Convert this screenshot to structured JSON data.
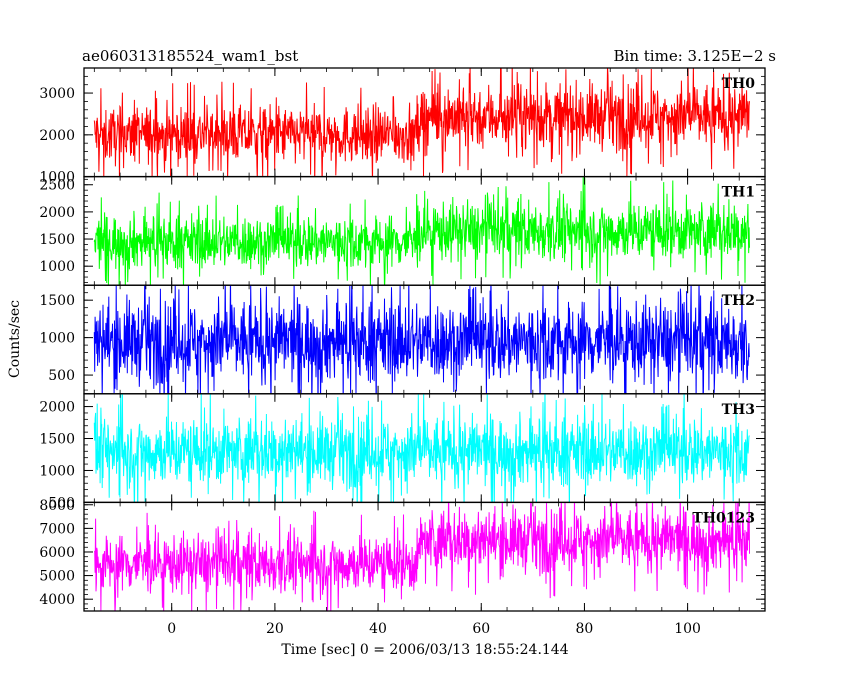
{
  "chart_data": {
    "type": "line",
    "title": "ae060313185524_wam1_bst",
    "bin_time_label": "Bin time: 3.125E−2 s",
    "xlabel": "Time [sec] 0 = 2006/03/13 18:55:24.144",
    "ylabel": "Counts/sec",
    "xlim": [
      -17,
      115
    ],
    "x_data_range": [
      -15,
      112
    ],
    "xticks": [
      0,
      20,
      40,
      60,
      80,
      100
    ],
    "xtick_labels": [
      "0",
      "20",
      "40",
      "60",
      "80",
      "100"
    ],
    "panels": [
      {
        "name": "TH0",
        "color": "#ff0000",
        "ylim": [
          1000,
          3600
        ],
        "yticks": [
          1000,
          2000,
          3000
        ],
        "ytick_labels": [
          "1000",
          "2000",
          "3000"
        ],
        "segments": [
          {
            "x_start": -15,
            "x_end": 48,
            "low": 1300,
            "mean": 2000,
            "high": 2800
          },
          {
            "x_start": 48,
            "x_end": 112,
            "low": 1600,
            "mean": 2450,
            "high": 3300
          }
        ]
      },
      {
        "name": "TH1",
        "color": "#00ff00",
        "ylim": [
          650,
          2650
        ],
        "yticks": [
          1000,
          1500,
          2000,
          2500
        ],
        "ytick_labels": [
          "1000",
          "1500",
          "2000",
          "2500"
        ],
        "segments": [
          {
            "x_start": -15,
            "x_end": 48,
            "low": 950,
            "mean": 1450,
            "high": 2050
          },
          {
            "x_start": 48,
            "x_end": 112,
            "low": 1100,
            "mean": 1650,
            "high": 2300
          }
        ]
      },
      {
        "name": "TH2",
        "color": "#0000ff",
        "ylim": [
          250,
          1700
        ],
        "yticks": [
          500,
          1000,
          1500
        ],
        "ytick_labels": [
          "500",
          "1000",
          "1500"
        ],
        "segments": [
          {
            "x_start": -15,
            "x_end": 112,
            "low": 350,
            "mean": 950,
            "high": 1550
          }
        ]
      },
      {
        "name": "TH3",
        "color": "#00ffff",
        "ylim": [
          500,
          2200
        ],
        "yticks": [
          500,
          1000,
          1500,
          2000
        ],
        "ytick_labels": [
          "500",
          "1000",
          "1500",
          "2000"
        ],
        "segments": [
          {
            "x_start": -15,
            "x_end": 112,
            "low": 750,
            "mean": 1300,
            "high": 1950
          }
        ]
      },
      {
        "name": "TH0123",
        "color": "#ff00ff",
        "ylim": [
          3500,
          8100
        ],
        "yticks": [
          4000,
          5000,
          6000,
          7000,
          8000
        ],
        "ytick_labels": [
          "4000",
          "5000",
          "6000",
          "7000",
          "8000"
        ],
        "segments": [
          {
            "x_start": -15,
            "x_end": 48,
            "low": 4300,
            "mean": 5500,
            "high": 7000
          },
          {
            "x_start": 48,
            "x_end": 112,
            "low": 5000,
            "mean": 6500,
            "high": 7900
          }
        ]
      }
    ]
  }
}
